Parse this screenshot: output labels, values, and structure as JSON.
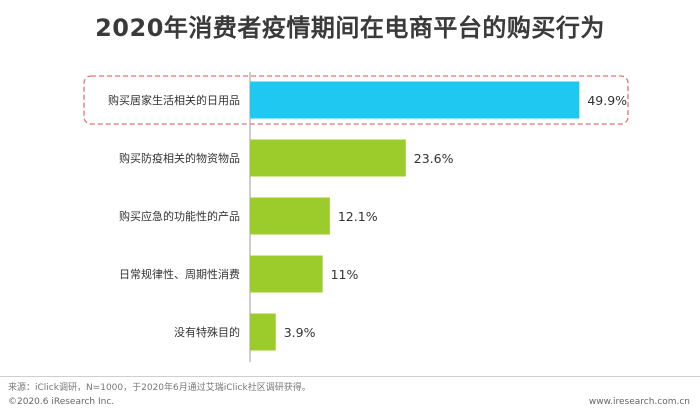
{
  "chart_data": {
    "type": "bar",
    "orientation": "horizontal",
    "title": "2020年消费者疫情期间在电商平台的购买行为",
    "categories": [
      "购买居家生活相关的日用品",
      "购买防疫相关的物资物品",
      "购买应急的功能性的产品",
      "日常规律性、周期性消费",
      "没有特殊目的"
    ],
    "values": [
      49.9,
      23.6,
      12.1,
      11,
      3.9
    ],
    "value_labels": [
      "49.9%",
      "23.6%",
      "12.1%",
      "11%",
      "3.9%"
    ],
    "xlim": [
      0,
      50
    ],
    "grid": false,
    "highlight_index": 0,
    "colors": {
      "highlight": "#1ec8f0",
      "default": "#9ccc2c",
      "highlight_box": "#e57373",
      "axis": "#9e9e9e"
    }
  },
  "footer": {
    "source": "来源：iClick调研，N=1000，于2020年6月通过艾瑞iClick社区调研获得。",
    "copyright": "©2020.6 iResearch Inc.",
    "website": "www.iresearch.com.cn"
  }
}
